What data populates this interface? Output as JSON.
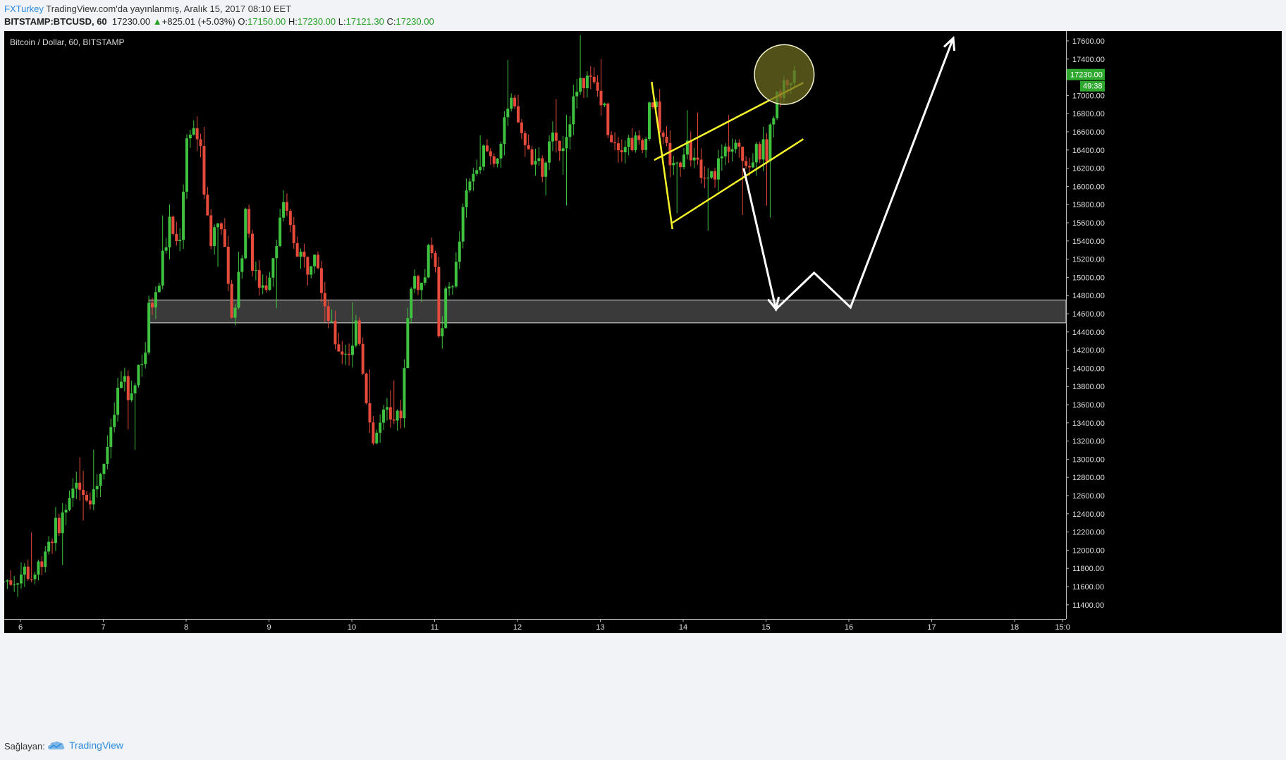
{
  "header": {
    "author": "FXTurkey",
    "published_text": "TradingView.com'da yayınlanmış, Aralık 15, 2017 08:10 EET",
    "symbol": "BITSTAMP:BTCUSD, 60",
    "last_price": "17230.00",
    "change": "+825.01 (+5.03%)",
    "open_label": "O:",
    "open": "17150.00",
    "high_label": "H:",
    "high": "17230.00",
    "low_label": "L:",
    "low": "17121.30",
    "close_label": "C:",
    "close": "17230.00"
  },
  "footer": {
    "provider_label": "Sağlayan:",
    "brand": "TradingView",
    "brand_icon": "tradingview-cloud-icon"
  },
  "colors": {
    "background": "#000000",
    "up": "#3fc23f",
    "down": "#e64a3b",
    "zone_fill": "#3a3a3a",
    "zone_border": "#e6e6e6",
    "trendline": "#f5f52a",
    "projection": "#ffffff",
    "price_tag": "#2fa82f",
    "circle_fill": "#6b6b20"
  },
  "chart_data": {
    "type": "candlestick",
    "title": "Bitcoin / Dollar, 60, BITSTAMP",
    "ylim": [
      11200,
      17800
    ],
    "y_ticks": [
      "11400.00",
      "11600.00",
      "11800.00",
      "12000.00",
      "12200.00",
      "12400.00",
      "12600.00",
      "12800.00",
      "13000.00",
      "13200.00",
      "13400.00",
      "13600.00",
      "13800.00",
      "14000.00",
      "14200.00",
      "14400.00",
      "14600.00",
      "14800.00",
      "15000.00",
      "15200.00",
      "15400.00",
      "15600.00",
      "15800.00",
      "16000.00",
      "16200.00",
      "16400.00",
      "16600.00",
      "16800.00",
      "17000.00",
      "17200.00",
      "17400.00",
      "17600.00"
    ],
    "x_ticks": [
      "6",
      "7",
      "8",
      "9",
      "10",
      "11",
      "12",
      "13",
      "14",
      "15",
      "16",
      "17",
      "18",
      "15:0"
    ],
    "x_range_days": [
      5.8,
      19.0
    ],
    "grid": false,
    "current_price_tag": "17230.00",
    "countdown_tag": "49:38",
    "anchors": [
      [
        5.8,
        11650
      ],
      [
        5.95,
        11680
      ],
      [
        6.1,
        11780
      ],
      [
        6.2,
        11700
      ],
      [
        6.35,
        12050
      ],
      [
        6.5,
        12300
      ],
      [
        6.65,
        12500
      ],
      [
        6.75,
        12800
      ],
      [
        6.85,
        12600
      ],
      [
        6.95,
        12700
      ],
      [
        7.05,
        13000
      ],
      [
        7.15,
        13300
      ],
      [
        7.2,
        13700
      ],
      [
        7.3,
        13900
      ],
      [
        7.35,
        13600
      ],
      [
        7.45,
        14000
      ],
      [
        7.55,
        14200
      ],
      [
        7.6,
        14700
      ],
      [
        7.7,
        14800
      ],
      [
        7.75,
        15200
      ],
      [
        7.85,
        15600
      ],
      [
        7.95,
        15300
      ],
      [
        8.05,
        16500
      ],
      [
        8.1,
        16700
      ],
      [
        8.2,
        16500
      ],
      [
        8.3,
        15600
      ],
      [
        8.35,
        15400
      ],
      [
        8.45,
        15800
      ],
      [
        8.55,
        14800
      ],
      [
        8.62,
        14600
      ],
      [
        8.7,
        15200
      ],
      [
        8.78,
        15800
      ],
      [
        8.85,
        15000
      ],
      [
        9.0,
        14900
      ],
      [
        9.1,
        15300
      ],
      [
        9.2,
        15800
      ],
      [
        9.3,
        15500
      ],
      [
        9.4,
        15300
      ],
      [
        9.5,
        15100
      ],
      [
        9.6,
        15400
      ],
      [
        9.7,
        14800
      ],
      [
        9.8,
        14400
      ],
      [
        9.9,
        14200
      ],
      [
        10.05,
        14200
      ],
      [
        10.1,
        14600
      ],
      [
        10.2,
        13800
      ],
      [
        10.3,
        13200
      ],
      [
        10.45,
        13500
      ],
      [
        10.55,
        13300
      ],
      [
        10.65,
        13600
      ],
      [
        10.72,
        14700
      ],
      [
        10.8,
        15000
      ],
      [
        10.9,
        14900
      ],
      [
        11.0,
        15400
      ],
      [
        11.05,
        15200
      ],
      [
        11.1,
        14100
      ],
      [
        11.15,
        14700
      ],
      [
        11.3,
        15100
      ],
      [
        11.4,
        15800
      ],
      [
        11.55,
        16300
      ],
      [
        11.65,
        16400
      ],
      [
        11.75,
        16300
      ],
      [
        11.85,
        16500
      ],
      [
        11.95,
        16900
      ],
      [
        12.05,
        16700
      ],
      [
        12.15,
        16400
      ],
      [
        12.25,
        16300
      ],
      [
        12.35,
        16100
      ],
      [
        12.45,
        16500
      ],
      [
        12.6,
        16500
      ],
      [
        12.7,
        16900
      ],
      [
        12.85,
        17200
      ],
      [
        12.95,
        17100
      ],
      [
        13.05,
        17000
      ],
      [
        13.15,
        16600
      ],
      [
        13.25,
        16500
      ],
      [
        13.35,
        16500
      ],
      [
        13.45,
        16500
      ],
      [
        13.55,
        16400
      ],
      [
        13.65,
        17000
      ],
      [
        13.72,
        16800
      ],
      [
        13.78,
        16600
      ],
      [
        13.85,
        16400
      ],
      [
        13.92,
        16200
      ],
      [
        14.0,
        16300
      ],
      [
        14.1,
        16400
      ],
      [
        14.2,
        16300
      ],
      [
        14.28,
        16000
      ],
      [
        14.38,
        16100
      ],
      [
        14.5,
        16300
      ],
      [
        14.6,
        16500
      ],
      [
        14.7,
        16600
      ],
      [
        14.78,
        16200
      ],
      [
        14.88,
        16300
      ],
      [
        14.98,
        16400
      ],
      [
        15.05,
        16400
      ],
      [
        15.12,
        16800
      ],
      [
        15.2,
        17000
      ],
      [
        15.28,
        17150
      ],
      [
        15.38,
        17230
      ]
    ],
    "resistance_zone": [
      14500,
      14750
    ],
    "zone_x_start_day": 7.55,
    "trendlines": [
      {
        "from": [
          13.62,
          17150
        ],
        "to": [
          13.87,
          15530
        ]
      },
      {
        "from": [
          13.65,
          16290
        ],
        "to": [
          15.45,
          17140
        ]
      },
      {
        "from": [
          13.87,
          15600
        ],
        "to": [
          15.45,
          16520
        ]
      }
    ],
    "projection": [
      [
        14.73,
        16200
      ],
      [
        15.12,
        14650
      ],
      [
        15.58,
        15050
      ],
      [
        16.02,
        14670
      ],
      [
        17.26,
        17630
      ]
    ],
    "highlight_circle": {
      "center": [
        15.22,
        17230
      ],
      "radius_days": 0.36
    }
  }
}
